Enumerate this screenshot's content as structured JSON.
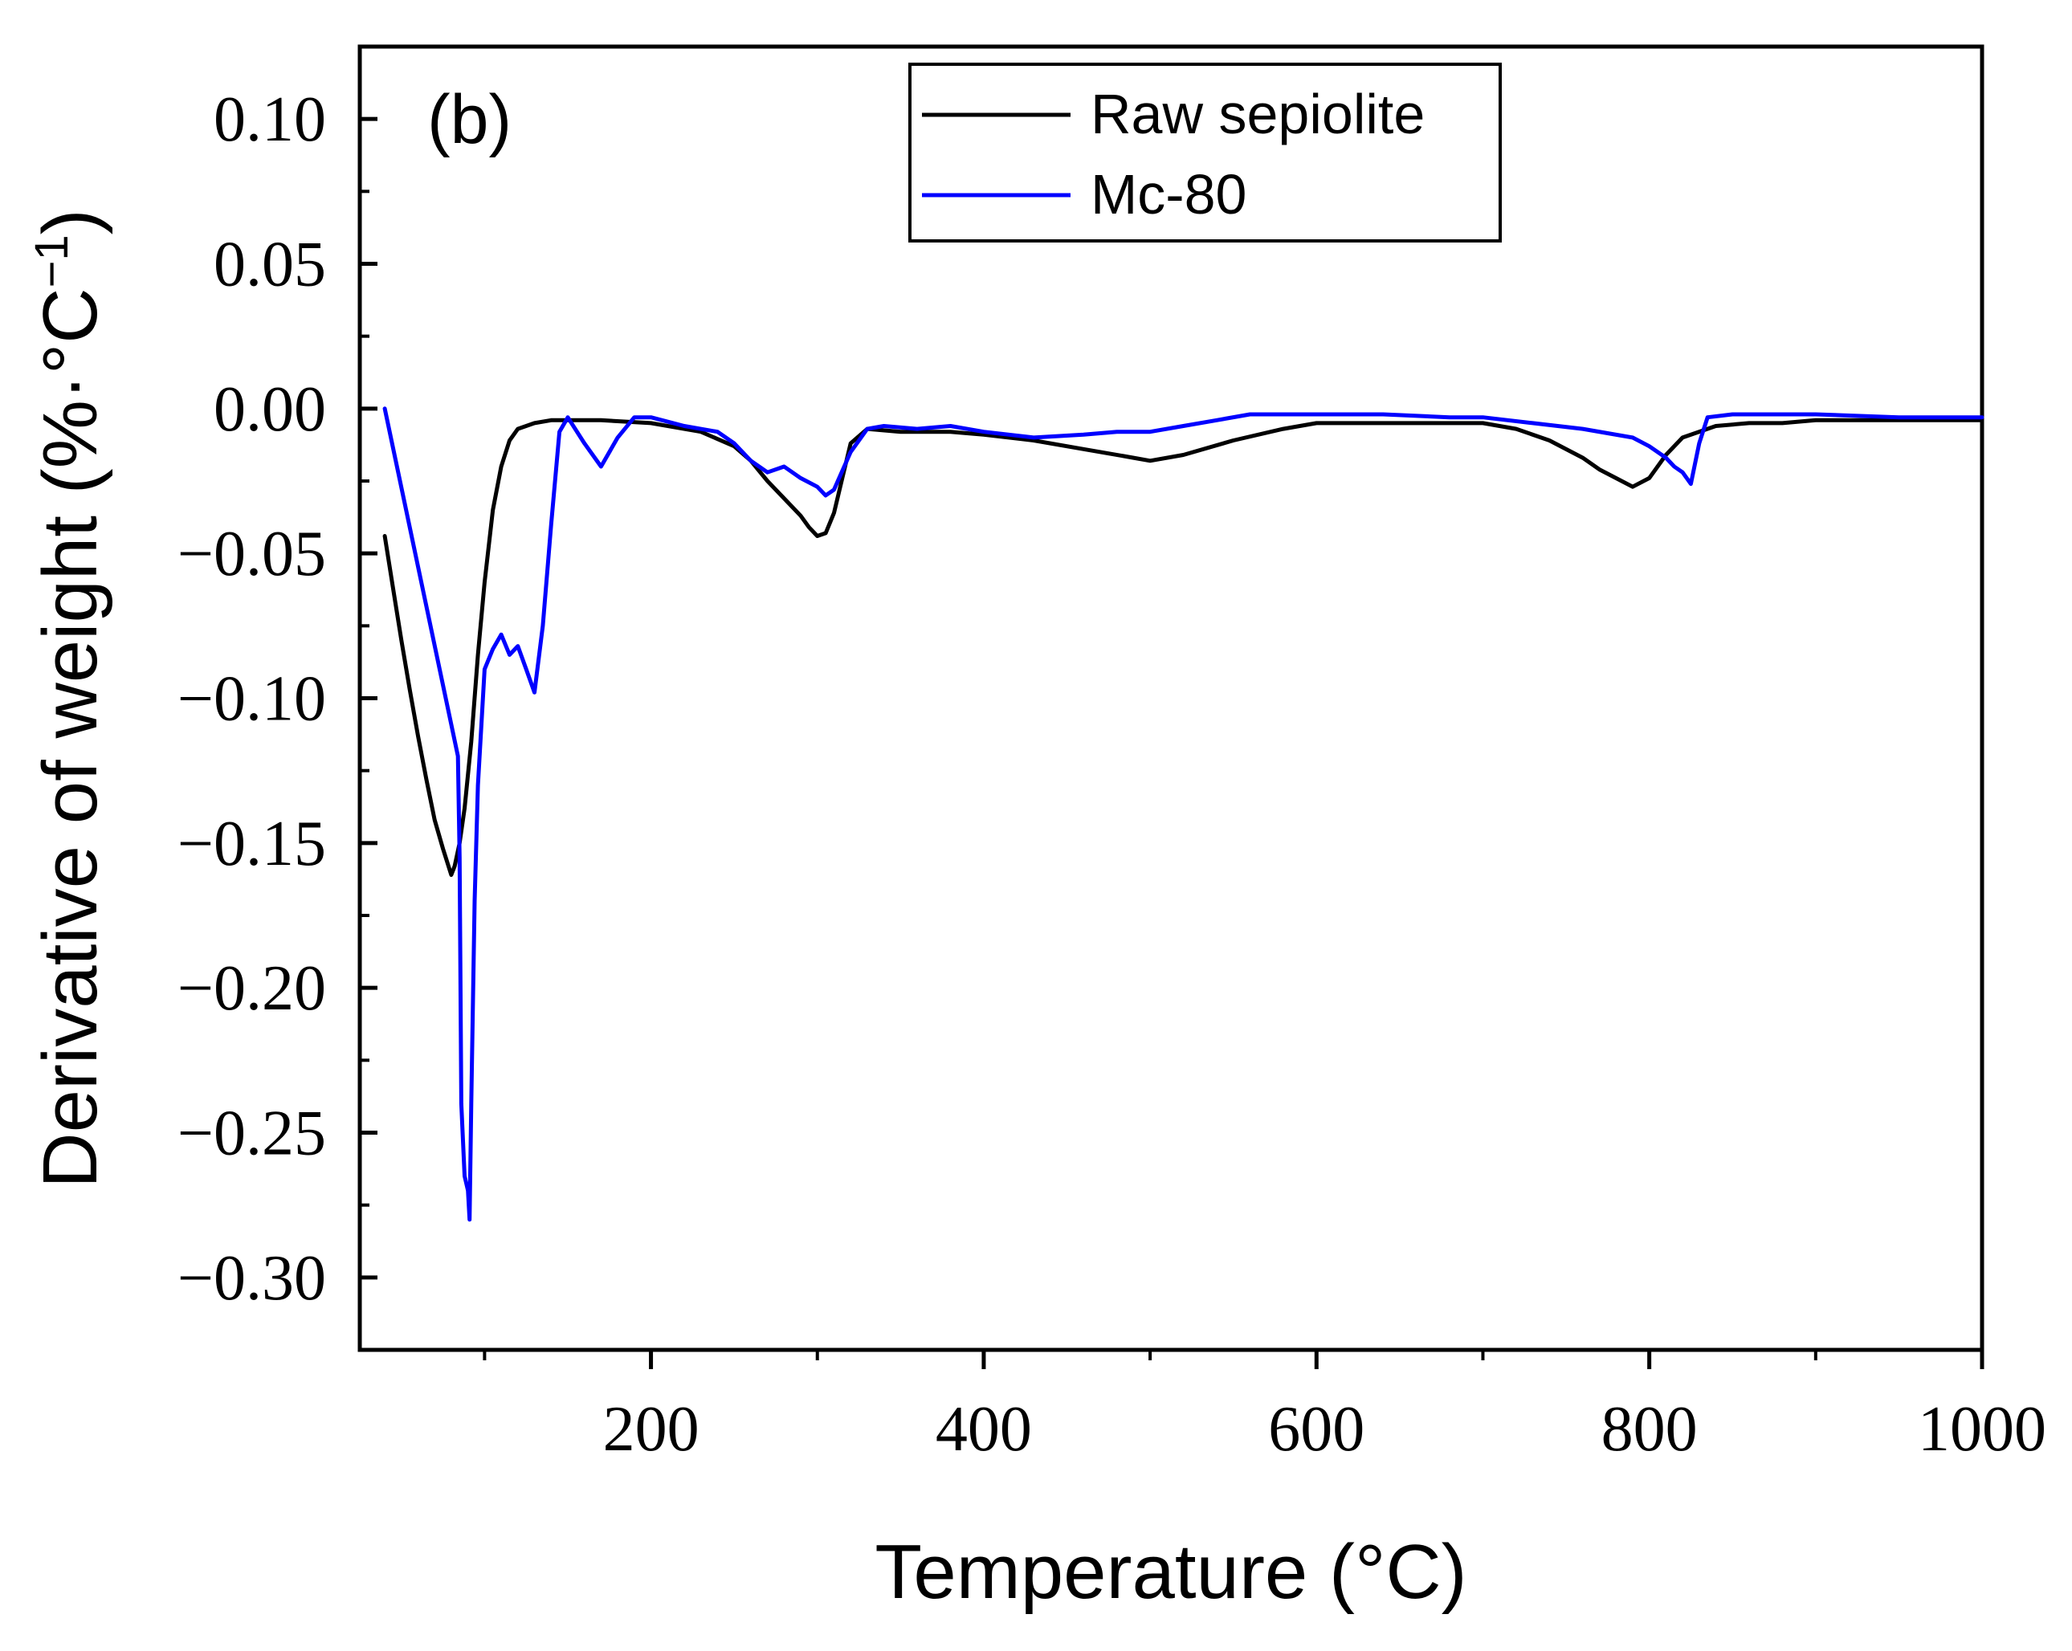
{
  "chart_data": {
    "type": "line",
    "panel_label": "(b)",
    "title": "",
    "xlabel": "Temperature (°C)",
    "ylabel": "Derivative of weight (%·°C",
    "ylabel_superscript": "−1",
    "ylabel_suffix": ")",
    "xlim": [
      25,
      1000
    ],
    "ylim": [
      -0.325,
      0.125
    ],
    "x_ticks": [
      200,
      400,
      600,
      800,
      1000
    ],
    "x_tick_labels": [
      "200",
      "400",
      "600",
      "800",
      "1000"
    ],
    "x_minor_ticks": [
      100,
      300,
      500,
      700,
      900
    ],
    "y_ticks": [
      0.1,
      0.05,
      0.0,
      -0.05,
      -0.1,
      -0.15,
      -0.2,
      -0.25,
      -0.3
    ],
    "y_tick_labels": [
      "0.10",
      "0.05",
      "0.00",
      "−0.05",
      "−0.10",
      "−0.15",
      "−0.20",
      "−0.25",
      "−0.30"
    ],
    "grid": false,
    "legend_position": "top-center",
    "series": [
      {
        "name": "Raw sepiolite",
        "color": "#000000",
        "x": [
          40,
          45,
          50,
          55,
          60,
          65,
          70,
          75,
          80,
          82,
          85,
          88,
          92,
          96,
          100,
          105,
          110,
          115,
          120,
          130,
          140,
          150,
          170,
          200,
          230,
          250,
          260,
          270,
          280,
          290,
          295,
          300,
          305,
          310,
          315,
          320,
          330,
          350,
          380,
          400,
          430,
          460,
          490,
          500,
          520,
          550,
          580,
          600,
          650,
          700,
          720,
          740,
          760,
          770,
          780,
          790,
          800,
          810,
          820,
          840,
          860,
          880,
          900,
          950,
          1000
        ],
        "y": [
          -0.044,
          -0.062,
          -0.08,
          -0.097,
          -0.113,
          -0.128,
          -0.142,
          -0.152,
          -0.161,
          -0.158,
          -0.15,
          -0.138,
          -0.115,
          -0.085,
          -0.06,
          -0.035,
          -0.02,
          -0.011,
          -0.007,
          -0.005,
          -0.004,
          -0.004,
          -0.004,
          -0.005,
          -0.008,
          -0.013,
          -0.018,
          -0.025,
          -0.031,
          -0.037,
          -0.041,
          -0.044,
          -0.043,
          -0.036,
          -0.024,
          -0.012,
          -0.007,
          -0.008,
          -0.008,
          -0.009,
          -0.011,
          -0.014,
          -0.017,
          -0.018,
          -0.016,
          -0.011,
          -0.007,
          -0.005,
          -0.005,
          -0.005,
          -0.007,
          -0.011,
          -0.017,
          -0.021,
          -0.024,
          -0.027,
          -0.024,
          -0.016,
          -0.01,
          -0.006,
          -0.005,
          -0.005,
          -0.004,
          -0.004,
          -0.004
        ]
      },
      {
        "name": "Mc-80",
        "color": "#0000ff",
        "x": [
          40,
          84,
          85,
          86,
          88,
          90,
          91,
          92,
          94,
          96,
          100,
          105,
          110,
          115,
          120,
          125,
          130,
          135,
          140,
          145,
          150,
          160,
          170,
          180,
          190,
          200,
          220,
          240,
          250,
          260,
          270,
          280,
          290,
          300,
          305,
          310,
          320,
          330,
          340,
          360,
          380,
          400,
          430,
          460,
          480,
          500,
          520,
          540,
          560,
          600,
          640,
          680,
          700,
          730,
          760,
          790,
          800,
          810,
          815,
          820,
          825,
          830,
          835,
          850,
          900,
          950,
          1000
        ],
        "y": [
          0.0,
          -0.12,
          -0.155,
          -0.24,
          -0.265,
          -0.27,
          -0.28,
          -0.24,
          -0.17,
          -0.13,
          -0.09,
          -0.083,
          -0.078,
          -0.085,
          -0.082,
          -0.09,
          -0.098,
          -0.075,
          -0.04,
          -0.008,
          -0.003,
          -0.012,
          -0.02,
          -0.01,
          -0.003,
          -0.003,
          -0.006,
          -0.008,
          -0.012,
          -0.018,
          -0.022,
          -0.02,
          -0.024,
          -0.027,
          -0.03,
          -0.028,
          -0.015,
          -0.007,
          -0.006,
          -0.007,
          -0.006,
          -0.008,
          -0.01,
          -0.009,
          -0.008,
          -0.008,
          -0.006,
          -0.004,
          -0.002,
          -0.002,
          -0.002,
          -0.003,
          -0.003,
          -0.005,
          -0.007,
          -0.01,
          -0.013,
          -0.017,
          -0.02,
          -0.022,
          -0.026,
          -0.012,
          -0.003,
          -0.002,
          -0.002,
          -0.003,
          -0.003
        ]
      }
    ]
  }
}
